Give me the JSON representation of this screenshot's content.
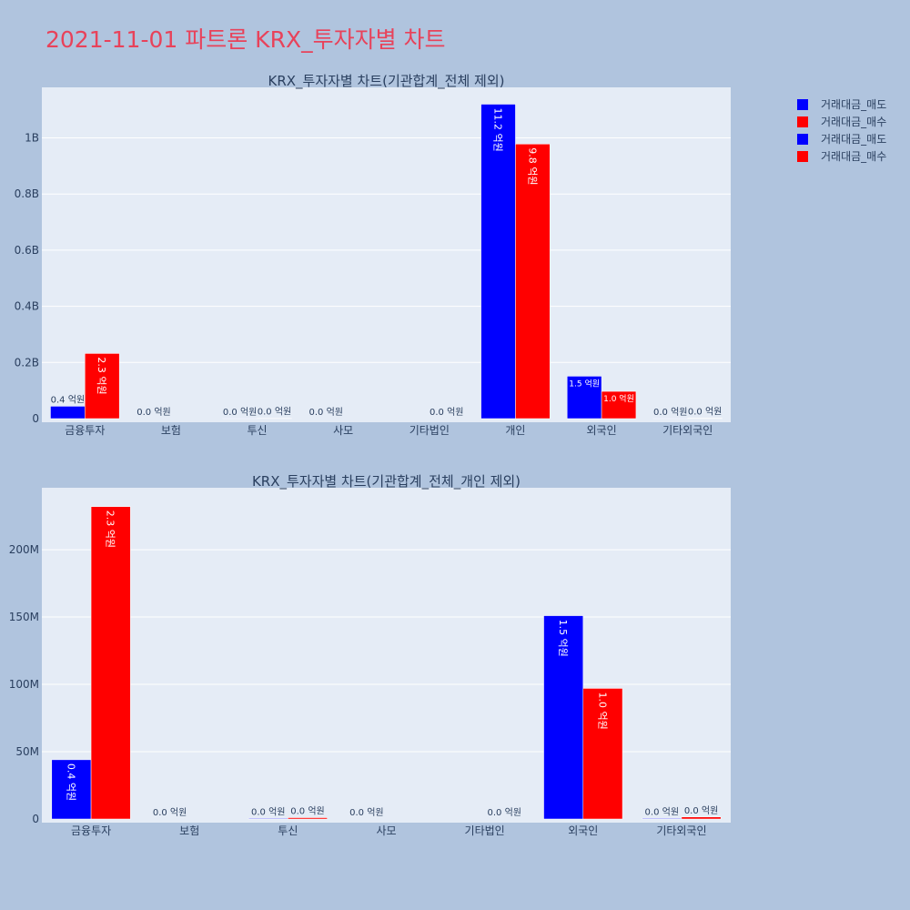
{
  "main_title": "2021-11-01 파트론 KRX_투자자별 차트",
  "colors": {
    "sell": "#0000ff",
    "buy": "#ff0000",
    "plot_bg": "#e5ecf6",
    "page_bg": "#b0c4de",
    "title": "#e8425a"
  },
  "legend": [
    {
      "label": "거래대금_매도",
      "color": "#0000ff"
    },
    {
      "label": "거래대금_매수",
      "color": "#ff0000"
    },
    {
      "label": "거래대금_매도",
      "color": "#0000ff"
    },
    {
      "label": "거래대금_매수",
      "color": "#ff0000"
    }
  ],
  "chart_data": [
    {
      "type": "bar",
      "title": "KRX_투자자별 차트(기관합계_전체 제외)",
      "categories": [
        "금융투자",
        "보험",
        "투신",
        "사모",
        "기타법인",
        "개인",
        "외국인",
        "기타외국인"
      ],
      "ylim": [
        0,
        1180000000
      ],
      "yticks": [
        0,
        200000000,
        400000000,
        600000000,
        800000000,
        1000000000
      ],
      "yticklabels": [
        "0",
        "0.2B",
        "0.4B",
        "0.6B",
        "0.8B",
        "1B"
      ],
      "grid": true,
      "series": [
        {
          "name": "거래대금_매도",
          "color": "#0000ff",
          "values": [
            44000000,
            0,
            500000,
            0,
            0,
            1120000000,
            151000000,
            500000
          ],
          "labels": [
            "0.4 억원",
            "0.0 억원",
            "0.0 억원",
            "0.0 억원",
            "",
            "11.2 억원",
            "1.5 억원",
            "0.0 억원"
          ]
        },
        {
          "name": "거래대금_매수",
          "color": "#ff0000",
          "values": [
            232000000,
            0,
            1000000,
            0,
            0,
            978000000,
            97000000,
            1500000
          ],
          "labels": [
            "2.3 억원",
            "",
            "0.0 억원",
            "",
            "0.0 억원",
            "9.8 억원",
            "1.0 억원",
            "0.0 억원"
          ]
        }
      ]
    },
    {
      "type": "bar",
      "title": "KRX_투자자별 차트(기관합계_전체_개인 제외)",
      "categories": [
        "금융투자",
        "보험",
        "투신",
        "사모",
        "기타법인",
        "외국인",
        "기타외국인"
      ],
      "ylim": [
        0,
        246000000
      ],
      "yticks": [
        0,
        50000000,
        100000000,
        150000000,
        200000000
      ],
      "yticklabels": [
        "0",
        "50M",
        "100M",
        "150M",
        "200M"
      ],
      "grid": true,
      "series": [
        {
          "name": "거래대금_매도",
          "color": "#0000ff",
          "values": [
            44000000,
            0,
            500000,
            0,
            0,
            151000000,
            500000
          ],
          "labels": [
            "0.4 억원",
            "0.0 억원",
            "0.0 억원",
            "0.0 억원",
            "",
            "1.5 억원",
            "0.0 억원"
          ]
        },
        {
          "name": "거래대금_매수",
          "color": "#ff0000",
          "values": [
            232000000,
            0,
            1000000,
            0,
            0,
            97000000,
            1500000
          ],
          "labels": [
            "2.3 억원",
            "",
            "0.0 억원",
            "",
            "0.0 억원",
            "1.0 억원",
            "0.0 억원"
          ]
        }
      ]
    }
  ]
}
